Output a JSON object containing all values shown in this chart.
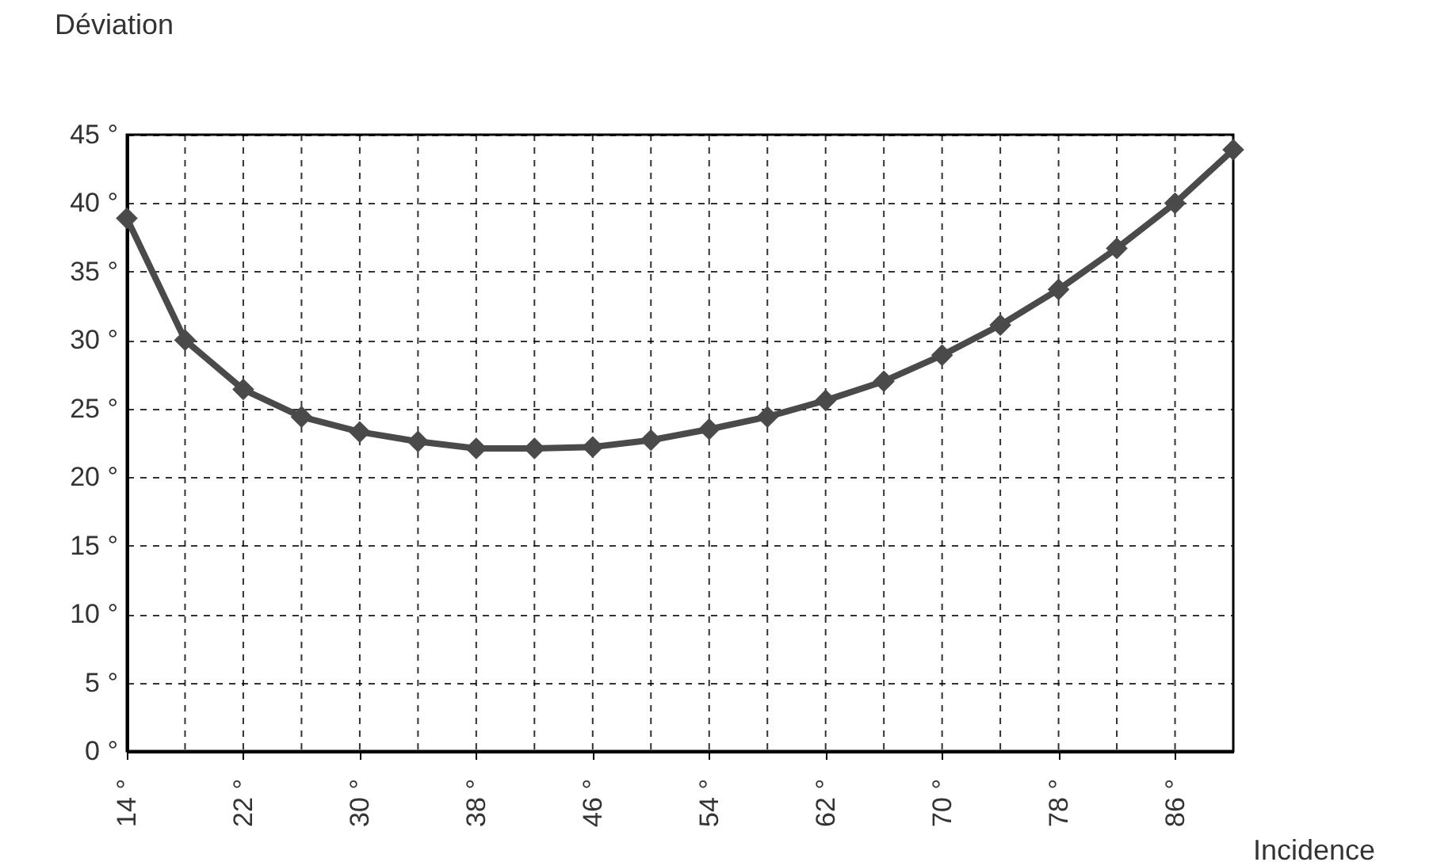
{
  "chart_data": {
    "type": "line",
    "xlabel": "Incidence",
    "ylabel": "Déviation",
    "x": [
      14,
      18,
      22,
      26,
      30,
      34,
      38,
      42,
      46,
      50,
      54,
      58,
      62,
      66,
      70,
      74,
      78,
      82,
      86,
      90
    ],
    "series": [
      {
        "color": "#4a4a4a",
        "values": [
          38.9,
          30.0,
          26.4,
          24.4,
          23.3,
          22.6,
          22.1,
          22.1,
          22.2,
          22.7,
          23.5,
          24.4,
          25.6,
          27.0,
          28.9,
          31.1,
          33.7,
          36.7,
          40.0,
          43.9
        ]
      }
    ],
    "xlim": [
      14,
      90
    ],
    "xticks": [
      {
        "value": 14,
        "label": "14 °"
      },
      {
        "value": 18,
        "label": null
      },
      {
        "value": 22,
        "label": "22 °"
      },
      {
        "value": 26,
        "label": null
      },
      {
        "value": 30,
        "label": "30 °"
      },
      {
        "value": 34,
        "label": null
      },
      {
        "value": 38,
        "label": "38 °"
      },
      {
        "value": 42,
        "label": null
      },
      {
        "value": 46,
        "label": "46 °"
      },
      {
        "value": 50,
        "label": null
      },
      {
        "value": 54,
        "label": "54 °"
      },
      {
        "value": 58,
        "label": null
      },
      {
        "value": 62,
        "label": "62 °"
      },
      {
        "value": 66,
        "label": null
      },
      {
        "value": 70,
        "label": "70 °"
      },
      {
        "value": 74,
        "label": null
      },
      {
        "value": 78,
        "label": "78 °"
      },
      {
        "value": 82,
        "label": null
      },
      {
        "value": 86,
        "label": "86 °"
      },
      {
        "value": 90,
        "label": null
      }
    ],
    "ylim": [
      0,
      45
    ],
    "yticks": [
      {
        "value": 0,
        "label": "0 °"
      },
      {
        "value": 5,
        "label": "5 °"
      },
      {
        "value": 10,
        "label": "10 °"
      },
      {
        "value": 15,
        "label": "15 °"
      },
      {
        "value": 20,
        "label": "20 °"
      },
      {
        "value": 25,
        "label": "25 °"
      },
      {
        "value": 30,
        "label": "30 °"
      },
      {
        "value": 35,
        "label": "35 °"
      },
      {
        "value": 40,
        "label": "40 °"
      },
      {
        "value": 45,
        "label": "45 °"
      }
    ],
    "grid": true,
    "marker": "diamond",
    "line_style": "solid",
    "legend": false
  }
}
